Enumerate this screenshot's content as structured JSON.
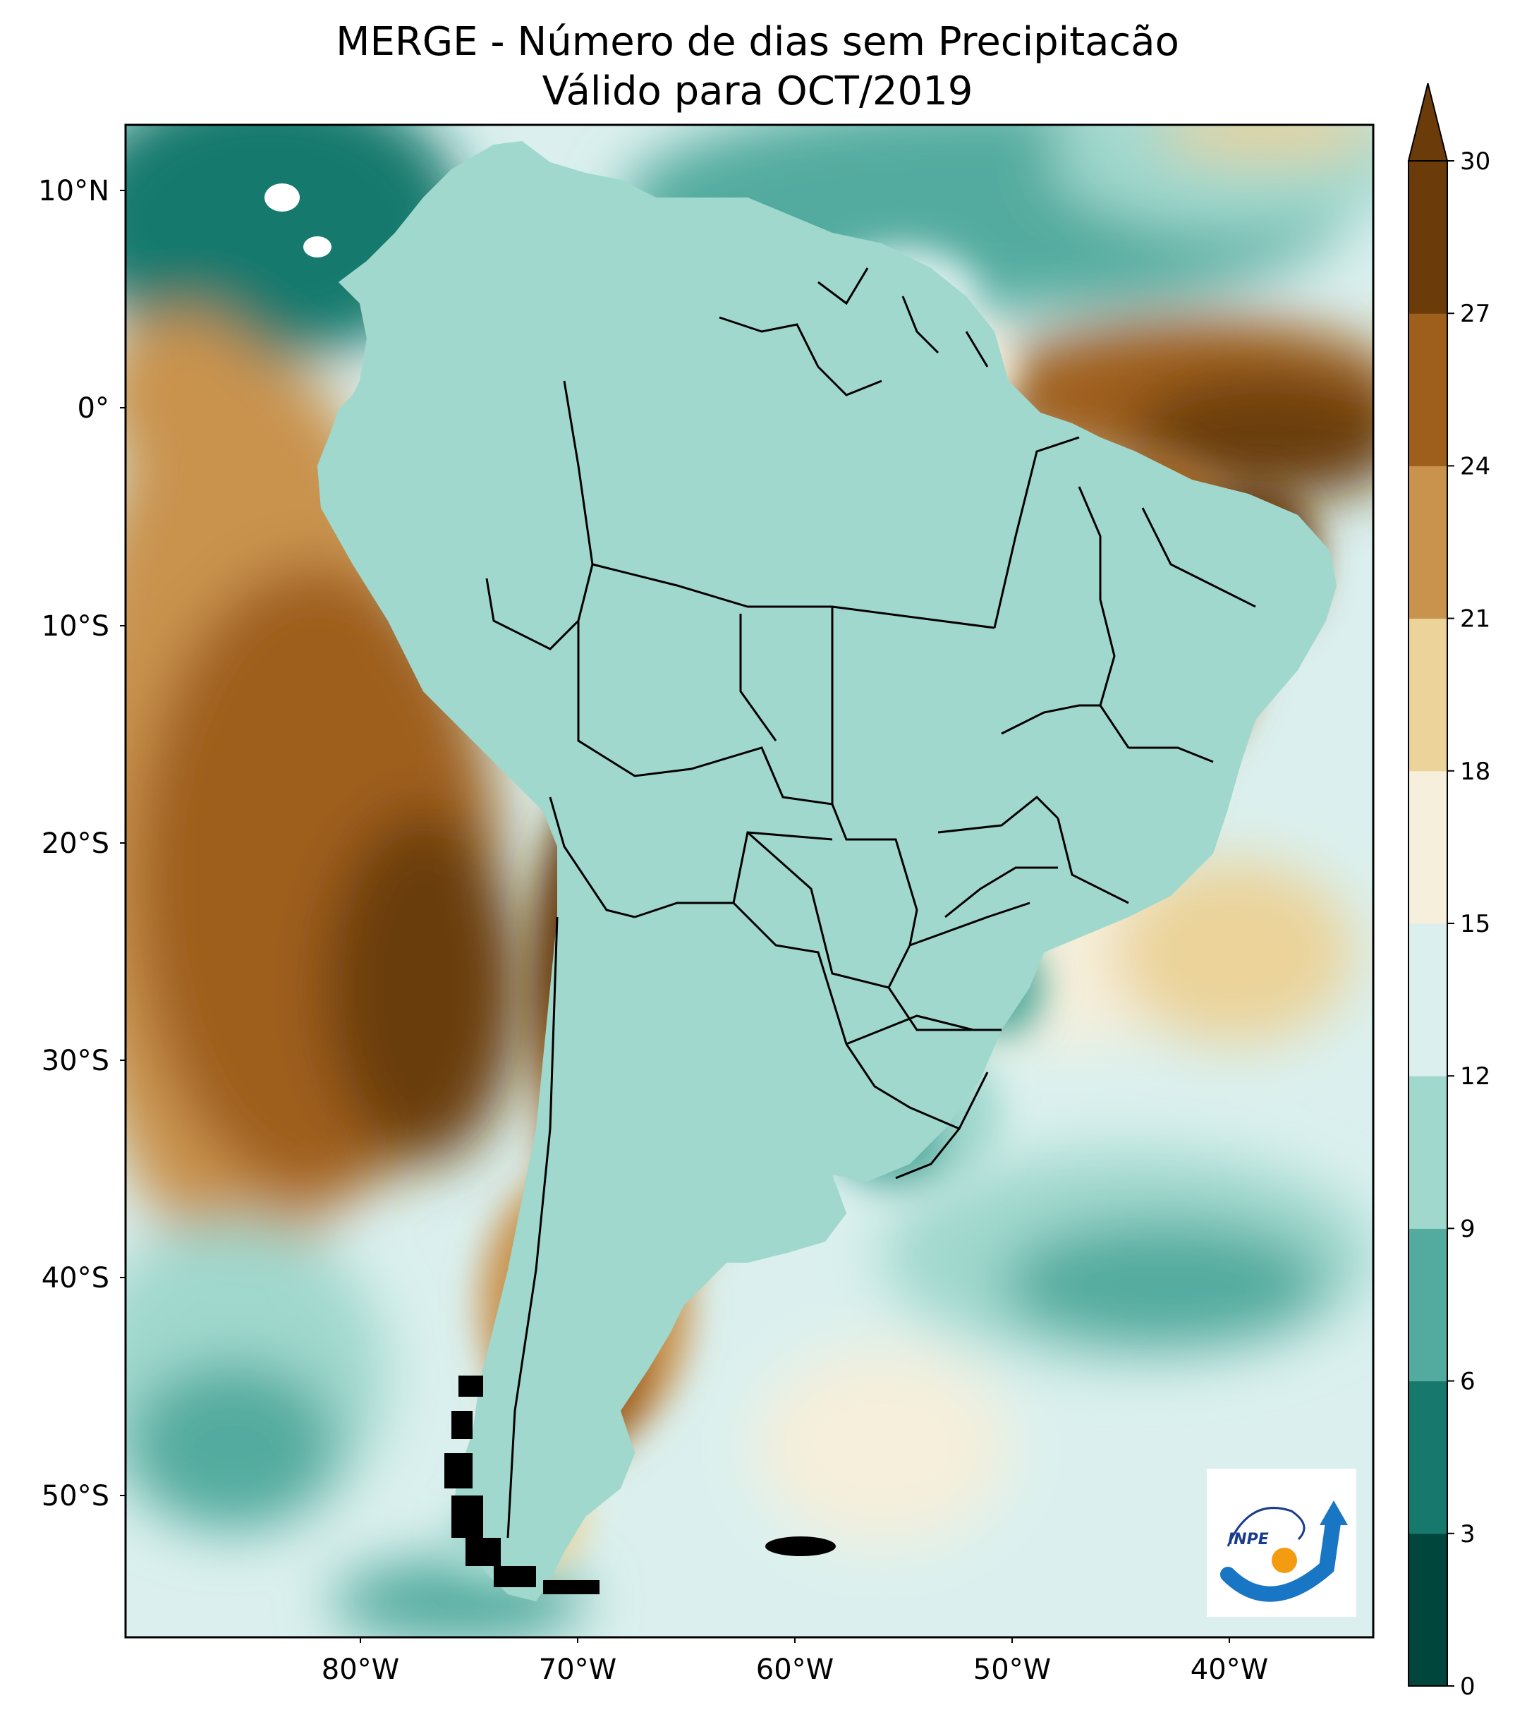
{
  "title": {
    "line1": "MERGE - Número de dias sem Precipitacão",
    "line2": "Válido para OCT/2019"
  },
  "axes": {
    "lat_ticks": [
      "10°N",
      "0°",
      "10°S",
      "20°S",
      "30°S",
      "40°S",
      "50°S"
    ],
    "lon_ticks": [
      "80°W",
      "70°W",
      "60°W",
      "50°W",
      "40°W"
    ]
  },
  "colorbar": {
    "ticks": [
      "0",
      "3",
      "6",
      "9",
      "12",
      "15",
      "18",
      "21",
      "24",
      "27",
      "30"
    ],
    "colors": [
      "#01463c",
      "#17796d",
      "#53ab9f",
      "#a0d8ce",
      "#dbf0ee",
      "#f5efdb",
      "#ebd39a",
      "#c9934d",
      "#9f5f1c",
      "#6b3c0a"
    ],
    "extend": "max"
  },
  "logo": {
    "text": "INPE"
  },
  "palette": {
    "sea_teal": "#53ab9f",
    "deep_teal": "#17796d",
    "light_teal": "#a0d8ce",
    "cream": "#f5efdb",
    "tan": "#ebd39a",
    "brown": "#c9934d",
    "dark_brown": "#9f5f1c",
    "very_dark_brown": "#6b3c0a",
    "border": "#000000"
  }
}
